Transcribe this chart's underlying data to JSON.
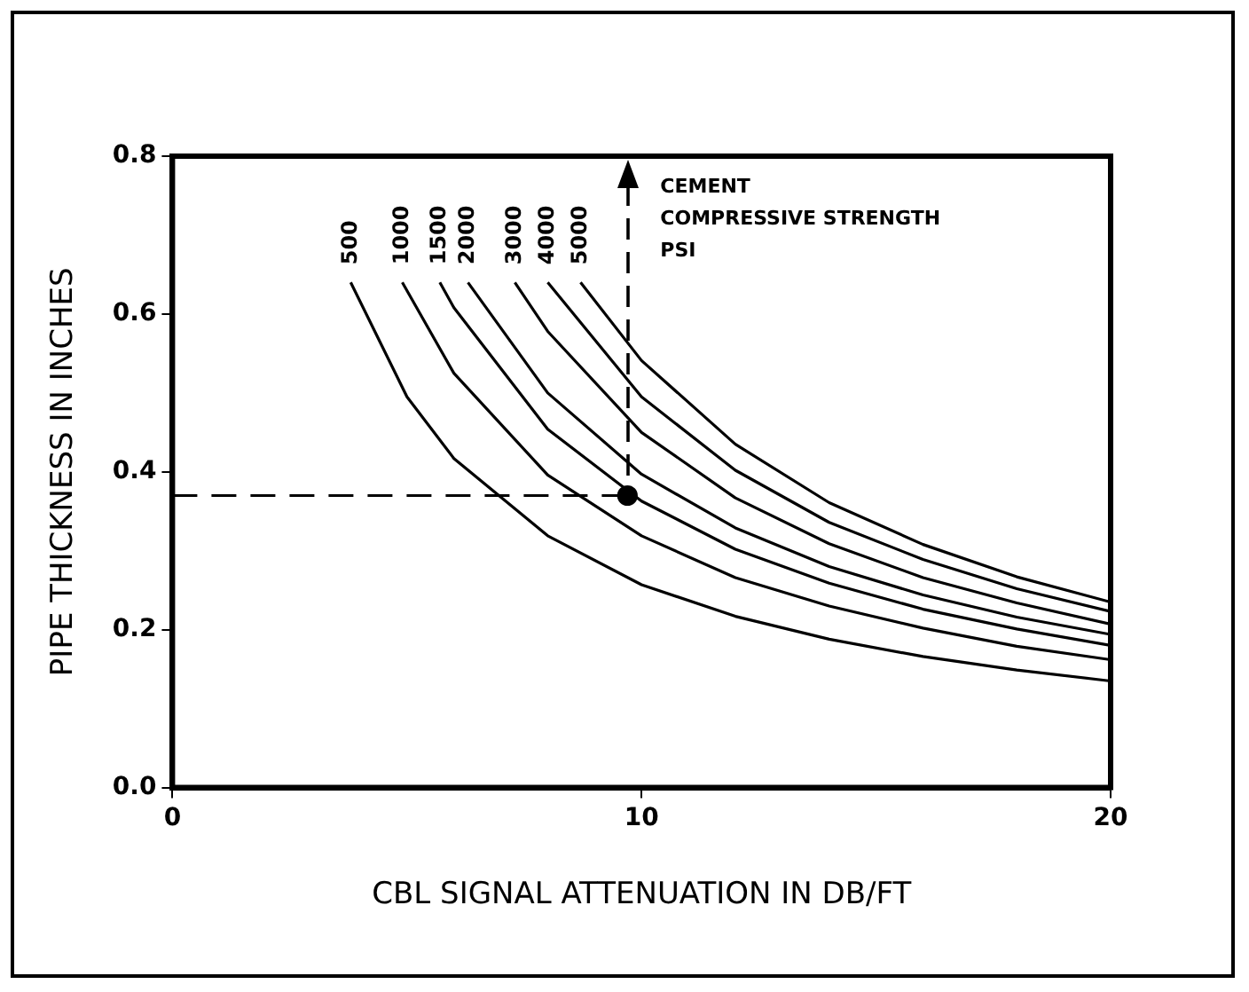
{
  "chart_data": {
    "type": "line",
    "xlabel": "CBL SIGNAL ATTENUATION IN DB/FT",
    "ylabel": "PIPE THICKNESS IN INCHES",
    "xlim": [
      0,
      20
    ],
    "xticks": [
      0,
      10,
      20
    ],
    "ylim": [
      0,
      0.8
    ],
    "yticks": [
      {
        "value": 0,
        "label": "0.0"
      },
      {
        "value": 0.2,
        "label": "0.2"
      },
      {
        "value": 0.4,
        "label": "0.4"
      },
      {
        "value": 0.6,
        "label": "0.6"
      },
      {
        "value": 0.8,
        "label": "0.8"
      }
    ],
    "grid": false,
    "legend": false,
    "marker": "none",
    "line_style": "solid",
    "annotations": [
      "CEMENT",
      "COMPRESSIVE STRENGTH",
      "PSI"
    ],
    "series": [
      {
        "name": "500",
        "color": "#000000",
        "x": [
          3.8,
          5,
          6,
          8,
          10,
          12,
          14,
          16,
          18,
          20
        ],
        "values": [
          0.64,
          0.495,
          0.417,
          0.319,
          0.257,
          0.217,
          0.188,
          0.166,
          0.149,
          0.135
        ]
      },
      {
        "name": "1000",
        "color": "#000000",
        "x": [
          4.9,
          6,
          8,
          10,
          12,
          14,
          16,
          18,
          20
        ],
        "values": [
          0.64,
          0.525,
          0.396,
          0.319,
          0.266,
          0.23,
          0.202,
          0.179,
          0.162
        ]
      },
      {
        "name": "1500",
        "color": "#000000",
        "x": [
          5.7,
          6,
          8,
          10,
          12,
          14,
          16,
          18,
          20
        ],
        "values": [
          0.64,
          0.608,
          0.454,
          0.363,
          0.302,
          0.259,
          0.226,
          0.201,
          0.18
        ]
      },
      {
        "name": "2000",
        "color": "#000000",
        "x": [
          6.3,
          8,
          10,
          12,
          14,
          16,
          18,
          20
        ],
        "values": [
          0.64,
          0.5,
          0.397,
          0.329,
          0.28,
          0.244,
          0.216,
          0.194
        ]
      },
      {
        "name": "3000",
        "color": "#000000",
        "x": [
          7.3,
          8,
          10,
          12,
          14,
          16,
          18,
          20
        ],
        "values": [
          0.64,
          0.578,
          0.45,
          0.367,
          0.309,
          0.266,
          0.234,
          0.207
        ]
      },
      {
        "name": "4000",
        "color": "#000000",
        "x": [
          8,
          10,
          12,
          14,
          16,
          18,
          20
        ],
        "values": [
          0.64,
          0.495,
          0.402,
          0.336,
          0.289,
          0.252,
          0.223
        ]
      },
      {
        "name": "5000",
        "color": "#000000",
        "x": [
          8.7,
          10,
          12,
          14,
          16,
          18,
          20
        ],
        "values": [
          0.64,
          0.541,
          0.435,
          0.361,
          0.308,
          0.267,
          0.235
        ]
      },
      {
        "color": "#000000",
        "line_style": "dashed",
        "x": [
          0,
          9.7
        ],
        "values": [
          0.37,
          0.37
        ]
      },
      {
        "type": "scatter",
        "color": "#000000",
        "marker": "circle",
        "x": [
          9.7
        ],
        "values": [
          0.37
        ]
      }
    ]
  }
}
